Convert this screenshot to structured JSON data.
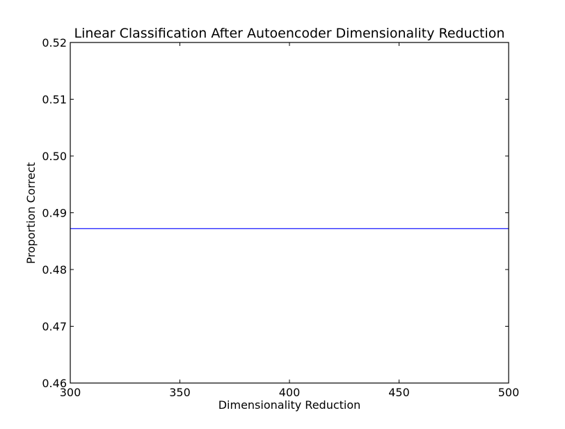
{
  "chart_data": {
    "type": "line",
    "title": "Linear Classification After Autoencoder Dimensionality Reduction",
    "xlabel": "Dimensionality Reduction",
    "ylabel": "Proportion Correct",
    "xlim": [
      300,
      500
    ],
    "ylim": [
      0.46,
      0.52
    ],
    "xticks": [
      "300",
      "350",
      "400",
      "450",
      "500"
    ],
    "yticks": [
      "0.46",
      "0.47",
      "0.48",
      "0.49",
      "0.50",
      "0.51",
      "0.52"
    ],
    "grid": false,
    "legend": "none",
    "series": [
      {
        "color": "#0000ff",
        "x": [
          300,
          350,
          400,
          450,
          500
        ],
        "y": [
          0.4872,
          0.4872,
          0.4872,
          0.4872,
          0.4872
        ]
      }
    ]
  }
}
